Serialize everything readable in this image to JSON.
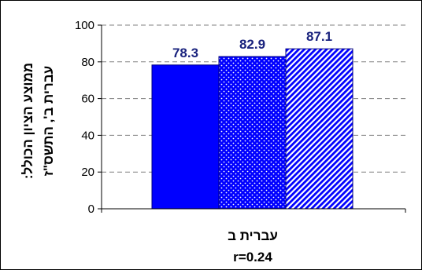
{
  "chart_data": {
    "type": "bar",
    "categories": [
      "עברית ב"
    ],
    "series": [
      {
        "values": [
          78.3
        ],
        "pattern": "solid",
        "color": "#0000ff"
      },
      {
        "values": [
          82.9
        ],
        "pattern": "dots",
        "color": "#0000ff"
      },
      {
        "values": [
          87.1
        ],
        "pattern": "diagonal",
        "color": "#0000ff"
      }
    ],
    "title": "",
    "xlabel": "עברית ב",
    "xlabel_line2": "r=0.24",
    "ylabel_line1": "ממוצע הציון הכולל:",
    "ylabel_line2": "עברית ב', התשס\"ז",
    "ylim": [
      0,
      100
    ],
    "yticks": [
      0,
      20,
      40,
      60,
      80,
      100
    ],
    "grid": true,
    "legend": "none",
    "label_color": "#1a237e"
  }
}
